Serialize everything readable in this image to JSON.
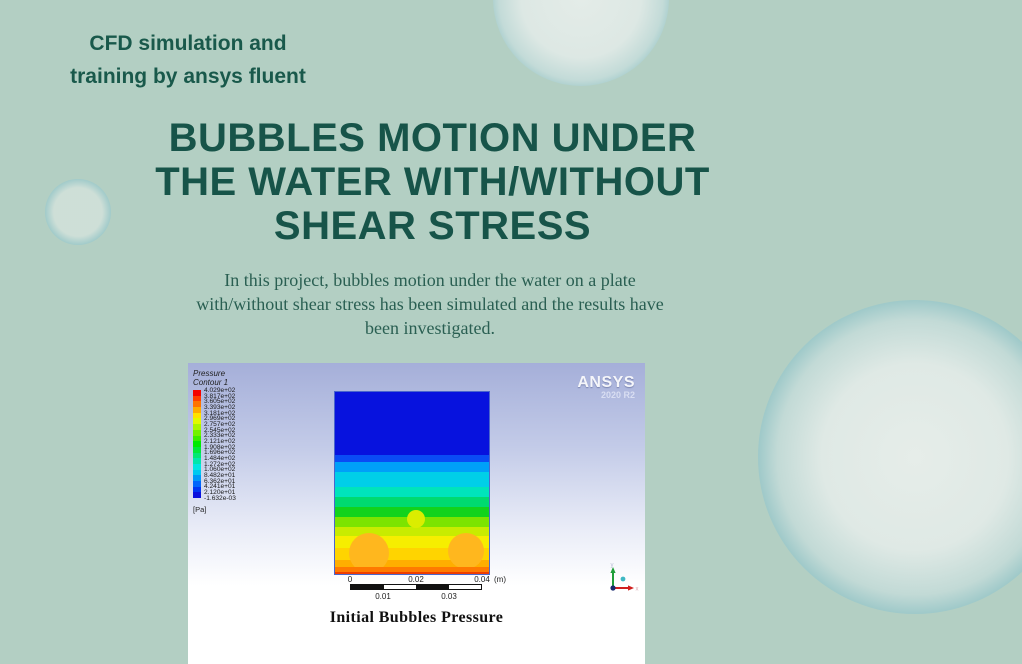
{
  "page": {
    "background_color": "#b3cfc3",
    "accent_green": "#175449",
    "header": {
      "line1": "CFD simulation and",
      "line2": "training by ansys fluent"
    },
    "title": {
      "line1": "BUBBLES MOTION UNDER",
      "line2": "THE WATER WITH/WITHOUT",
      "line3": "SHEAR STRESS"
    },
    "description": {
      "line1": "In this project, bubbles motion under the water on a plate",
      "line2": "with/without shear stress has been simulated and the results have",
      "line3": "been investigated."
    }
  },
  "figure": {
    "legend": {
      "title_line1": "Pressure",
      "title_line2": "Contour 1",
      "unit": "[Pa]",
      "values": [
        "4.029e+02",
        "3.817e+02",
        "3.605e+02",
        "3.393e+02",
        "3.181e+02",
        "2.969e+02",
        "2.757e+02",
        "2.545e+02",
        "2.333e+02",
        "2.121e+02",
        "1.908e+02",
        "1.696e+02",
        "1.484e+02",
        "1.272e+02",
        "1.060e+02",
        "8.482e+01",
        "6.362e+01",
        "4.241e+01",
        "2.120e+01",
        "-1.632e-03"
      ],
      "colors": [
        "#f40000",
        "#ff3c00",
        "#ff7300",
        "#ffab00",
        "#ffe200",
        "#e2fa00",
        "#aaf600",
        "#72f200",
        "#3aee00",
        "#00ea00",
        "#00e93a",
        "#00e873",
        "#00e7ab",
        "#00e6e2",
        "#00c9f0",
        "#0098f8",
        "#0066fb",
        "#0036f2",
        "#0b10dd"
      ]
    },
    "logo": {
      "name": "ANSYS",
      "version": "2020 R2"
    },
    "contour": {
      "border_color": "#4a66cc",
      "bands": [
        [
          0,
          64,
          "#0712de"
        ],
        [
          64,
          7,
          "#0a4cf5"
        ],
        [
          71,
          10,
          "#00a0f8"
        ],
        [
          81,
          15,
          "#00cfe8"
        ],
        [
          96,
          10,
          "#00e4bb"
        ],
        [
          106,
          10,
          "#00da70"
        ],
        [
          116,
          10,
          "#12d31c"
        ],
        [
          126,
          10,
          "#7ce400"
        ],
        [
          136,
          9,
          "#c8ec00"
        ],
        [
          145,
          12,
          "#f6ee00"
        ],
        [
          157,
          12,
          "#ffd400"
        ],
        [
          169,
          7,
          "#ffae00"
        ]
      ],
      "bubbles": [
        [
          82,
          128,
          9,
          "#dbed00"
        ],
        [
          35,
          162,
          20,
          "#ffb71e"
        ],
        [
          132,
          160,
          18,
          "#ffb71e"
        ]
      ],
      "overlays": [
        [
          176,
          8,
          "#ff7a00"
        ],
        [
          181,
          3,
          "#ef3f00"
        ]
      ]
    },
    "ruler": {
      "top": [
        "0",
        "0.02",
        "0.04"
      ],
      "unit": "(m)",
      "bottom": [
        "0.01",
        "0.03"
      ]
    },
    "axis_triad": {
      "x_label": "x",
      "y_label": "y"
    },
    "caption": "Initial Bubbles Pressure"
  }
}
